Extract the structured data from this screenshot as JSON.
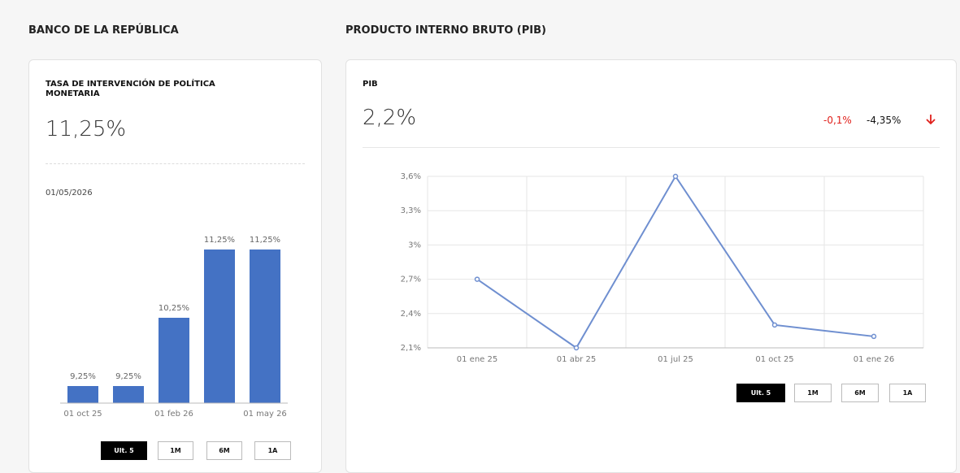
{
  "header": {
    "left": "BANCO DE LA REPÚBLICA",
    "right": "PRODUCTO INTERNO BRUTO (PIB)"
  },
  "cards": [
    {
      "title": "TASA DE INTERVENCIÓN DE POLÍTICA MONETARIA",
      "value": "11,25%",
      "date": "01/05/2026",
      "buttons": [
        "Ult. 5",
        "1M",
        "6M",
        "1A"
      ]
    },
    {
      "title": "PIB",
      "value": "2,2%",
      "change": "-0,1%",
      "change_pct": "-4,35%",
      "buttons": [
        "Ult. 5",
        "1M",
        "6M",
        "1A"
      ]
    }
  ],
  "chart_data": [
    {
      "type": "bar",
      "categories": [
        "01 oct 25",
        null,
        "01 feb 26",
        null,
        "01 may 26"
      ],
      "values": [
        9.25,
        9.25,
        10.25,
        11.25,
        11.25
      ],
      "value_labels": [
        "9,25%",
        "9,25%",
        "10,25%",
        "11,25%",
        "11,25%"
      ],
      "color": "#4472c4",
      "ylim": [
        9,
        11.25
      ]
    },
    {
      "type": "line",
      "categories": [
        "01 ene 25",
        "01 abr 25",
        "01 jul 25",
        "01 oct 25",
        "01 ene 26"
      ],
      "values": [
        2.7,
        2.1,
        3.6,
        2.3,
        2.2
      ],
      "color": "#6f8fd0",
      "ylim": [
        2.1,
        3.6
      ],
      "yticks": [
        {
          "value": 2.1,
          "label": "2,1%"
        },
        {
          "value": 2.4,
          "label": "2,4%"
        },
        {
          "value": 2.7,
          "label": "2,7%"
        },
        {
          "value": 3,
          "label": "3%"
        },
        {
          "value": 3.3,
          "label": "3,3%"
        },
        {
          "value": 3.6,
          "label": "3,6%"
        }
      ],
      "grid": true
    }
  ]
}
